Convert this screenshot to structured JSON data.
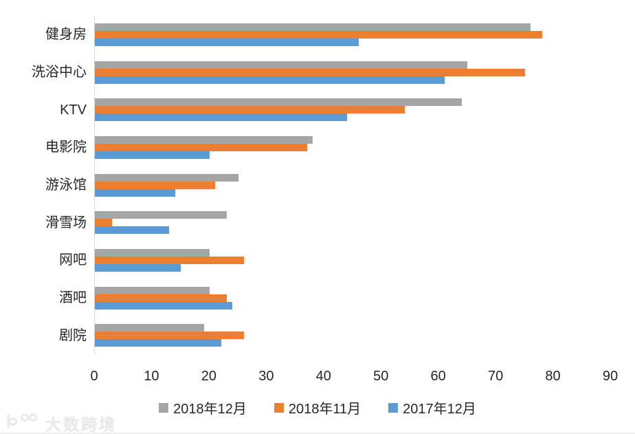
{
  "chart_data": {
    "type": "bar",
    "orientation": "horizontal",
    "title": "",
    "xlabel": "",
    "ylabel": "",
    "categories": [
      "健身房",
      "洗浴中心",
      "KTV",
      "电影院",
      "游泳馆",
      "滑雪场",
      "网吧",
      "酒吧",
      "剧院"
    ],
    "series": [
      {
        "name": "2018年12月",
        "color": "#A5A5A5",
        "values": [
          76,
          65,
          64,
          38,
          25,
          23,
          20,
          20,
          19
        ]
      },
      {
        "name": "2018年11月",
        "color": "#ED7D31",
        "values": [
          78,
          75,
          54,
          37,
          21,
          3,
          26,
          23,
          26
        ]
      },
      {
        "name": "2017年12月",
        "color": "#5B9BD5",
        "values": [
          46,
          61,
          44,
          20,
          14,
          13,
          15,
          24,
          22
        ]
      }
    ],
    "xlim": [
      0,
      90
    ],
    "x_ticks": [
      0,
      10,
      20,
      30,
      40,
      50,
      60,
      70,
      80,
      90
    ],
    "grid": false,
    "legend_position": "bottom",
    "axis_color": "#D9D9D9",
    "text_color": "#262626"
  },
  "watermark": {
    "text": "大数跨境"
  }
}
